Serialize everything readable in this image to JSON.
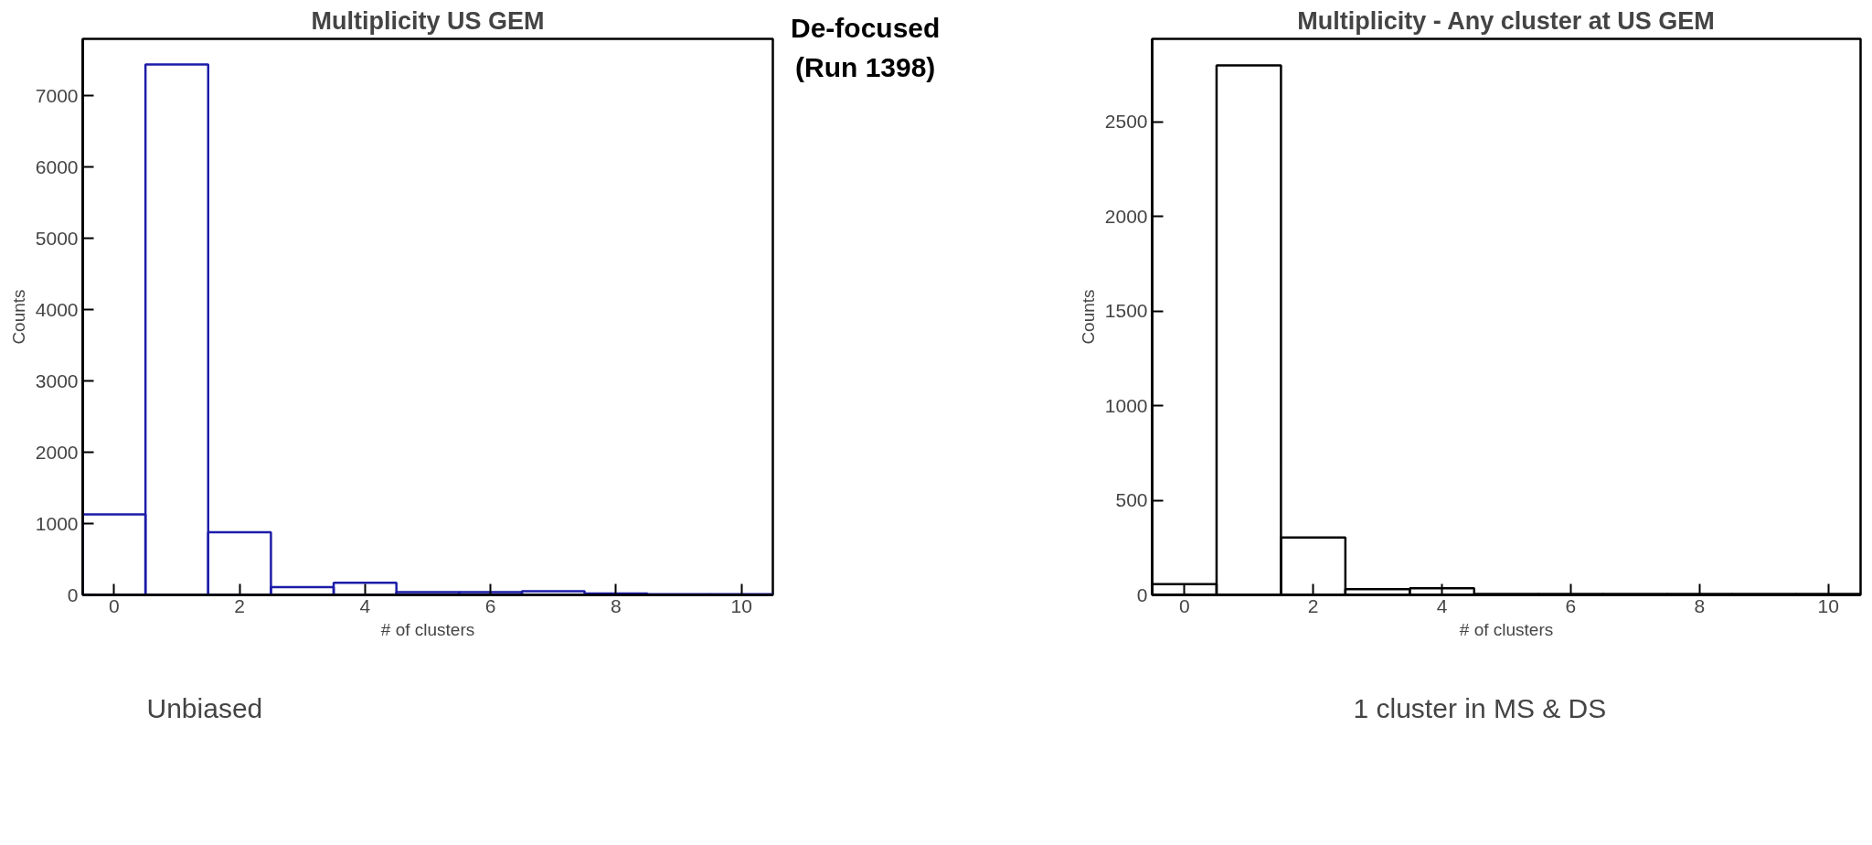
{
  "chart_data": [
    {
      "type": "histogram",
      "title": "Multiplicity US GEM",
      "xlabel": "# of clusters",
      "ylabel": "Counts",
      "bins": [
        -0.5,
        0.5,
        1.5,
        2.5,
        3.5,
        4.5,
        5.5,
        6.5,
        7.5,
        8.5,
        9.5,
        10.5
      ],
      "values": [
        1130,
        7440,
        880,
        110,
        170,
        40,
        40,
        50,
        20,
        10,
        10
      ],
      "color": "#1c1ca8",
      "xlim": [
        -0.5,
        10.5
      ],
      "ylim": [
        0,
        7800
      ],
      "xticks": [
        0,
        2,
        4,
        6,
        8,
        10
      ],
      "yticks": [
        0,
        1000,
        2000,
        3000,
        4000,
        5000,
        6000,
        7000
      ],
      "grid": false,
      "annotations": [
        "De-focused\n(Run 1398)",
        "Unbiased"
      ]
    },
    {
      "type": "histogram",
      "title": "Multiplicity - Any cluster at US GEM",
      "xlabel": "# of clusters",
      "ylabel": "Counts",
      "bins": [
        -0.5,
        0.5,
        1.5,
        2.5,
        3.5,
        4.5,
        5.5,
        6.5,
        7.5,
        8.5,
        9.5,
        10.5
      ],
      "values": [
        57,
        2800,
        304,
        30,
        35,
        5,
        5,
        5,
        5,
        5,
        5
      ],
      "color": "#000000",
      "xlim": [
        -0.5,
        10.5
      ],
      "ylim": [
        0,
        2940
      ],
      "xticks": [
        0,
        2,
        4,
        6,
        8,
        10
      ],
      "yticks": [
        0,
        500,
        1000,
        1500,
        2000,
        2500
      ],
      "grid": false,
      "annotations": [
        "1 cluster in MS & DS"
      ]
    }
  ]
}
